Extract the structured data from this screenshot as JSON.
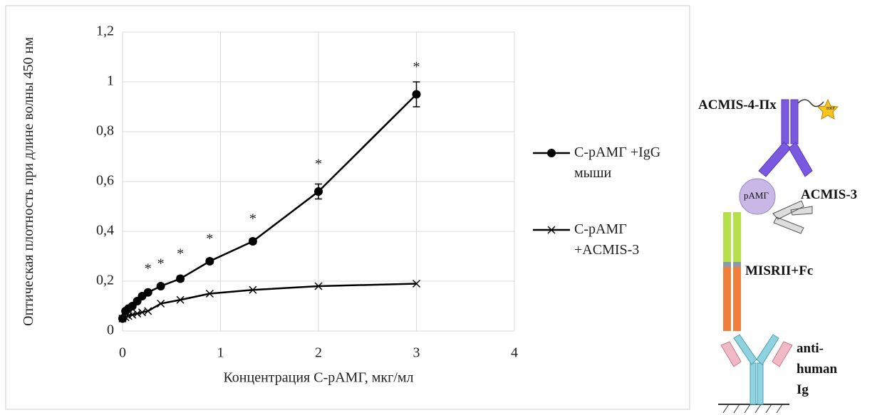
{
  "chart_data": {
    "type": "line",
    "x_label": "Концентрация  С-рАМГ, мкг/мл",
    "y_label": "Оптическая плотность при длине волны 450 нм",
    "x": [
      0,
      0.03,
      0.06,
      0.1,
      0.15,
      0.2,
      0.26,
      0.39,
      0.59,
      0.89,
      1.33,
      2,
      3
    ],
    "series": [
      {
        "name": "С-рАМГ +IgG мыши",
        "color": "#000000",
        "marker": "circle",
        "values": [
          0.05,
          0.08,
          0.09,
          0.1,
          0.12,
          0.14,
          0.155,
          0.18,
          0.21,
          0.28,
          0.36,
          0.56,
          0.95
        ],
        "errors": [
          0.005,
          0.005,
          0.005,
          0.005,
          0.005,
          0.005,
          0.008,
          0.008,
          0.01,
          0.01,
          0.01,
          0.03,
          0.05
        ]
      },
      {
        "name": "С-рАМГ +ACMIS-3",
        "color": "#000000",
        "marker": "x",
        "values": [
          0.05,
          0.055,
          0.06,
          0.065,
          0.07,
          0.075,
          0.08,
          0.11,
          0.125,
          0.15,
          0.165,
          0.18,
          0.19
        ]
      }
    ],
    "annotations": [
      {
        "text": "*",
        "x": 0.26,
        "y": 0.26
      },
      {
        "text": "*",
        "x": 0.39,
        "y": 0.28
      },
      {
        "text": "*",
        "x": 0.59,
        "y": 0.32
      },
      {
        "text": "*",
        "x": 0.89,
        "y": 0.38
      },
      {
        "text": "*",
        "x": 1.33,
        "y": 0.46
      },
      {
        "text": "*",
        "x": 2,
        "y": 0.68
      },
      {
        "text": "*",
        "x": 3,
        "y": 1.07
      }
    ],
    "xlim": [
      0,
      4
    ],
    "xticks": [
      0,
      1,
      2,
      3,
      4
    ],
    "ylim": [
      0,
      1.2
    ],
    "yticks": [
      0,
      {
        "value": 0.2,
        "label": "0,2"
      },
      {
        "value": 0.4,
        "label": "0,4"
      },
      {
        "value": 0.6,
        "label": "0,6"
      },
      {
        "value": 0.8,
        "label": "0,8"
      },
      1,
      {
        "value": 1.2,
        "label": "1,2"
      }
    ],
    "grid": true
  },
  "diagram": {
    "labels": [
      "ACMIS-4-Пх",
      "HRP",
      "pAMГ",
      "ACMIS-3",
      "MISRII+Fc",
      "anti-human Ig"
    ]
  }
}
